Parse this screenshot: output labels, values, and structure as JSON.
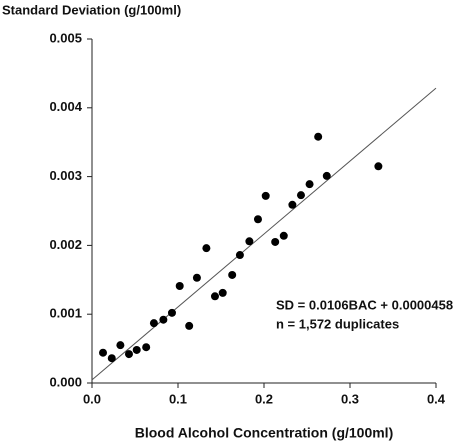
{
  "chart_data": {
    "type": "scatter",
    "title": "Standard Deviation (g/100ml)",
    "x_label": "Blood Alcohol Concentration (g/100ml)",
    "annotations": [
      "SD = 0.0106BAC + 0.0000458",
      "n = 1,572 duplicates"
    ],
    "fit": {
      "slope": 0.0106,
      "intercept": 4.58e-05
    },
    "series": [
      {
        "name": "duplicates",
        "color": "#000000",
        "x": [
          0.0128,
          0.023,
          0.033,
          0.043,
          0.052,
          0.063,
          0.072,
          0.083,
          0.093,
          0.102,
          0.113,
          0.122,
          0.133,
          0.143,
          0.152,
          0.163,
          0.172,
          0.183,
          0.193,
          0.202,
          0.213,
          0.223,
          0.233,
          0.243,
          0.253,
          0.263,
          0.273,
          0.333
        ],
        "values": [
          0.00044,
          0.00036,
          0.00055,
          0.00042,
          0.00048,
          0.00052,
          0.00087,
          0.00092,
          0.00102,
          0.00141,
          0.00083,
          0.00153,
          0.00196,
          0.00126,
          0.00131,
          0.00157,
          0.00186,
          0.00206,
          0.00238,
          0.00272,
          0.00205,
          0.00214,
          0.00259,
          0.00273,
          0.00289,
          0.00358,
          0.00301,
          0.00315
        ]
      }
    ],
    "xlim": [
      0,
      0.4
    ],
    "xticks": [
      {
        "value": 0,
        "label": "0.0"
      },
      0.1,
      0.2,
      0.3,
      0.4
    ],
    "ylim": [
      0,
      0.005
    ],
    "yticks": [
      {
        "value": 0,
        "label": "0.000"
      },
      {
        "value": 0.001,
        "label": "0.001"
      },
      {
        "value": 0.002,
        "label": "0.002"
      },
      {
        "value": 0.003,
        "label": "0.003"
      },
      {
        "value": 0.004,
        "label": "0.004"
      },
      {
        "value": 0.005,
        "label": "0.005"
      }
    ],
    "grid": false
  }
}
